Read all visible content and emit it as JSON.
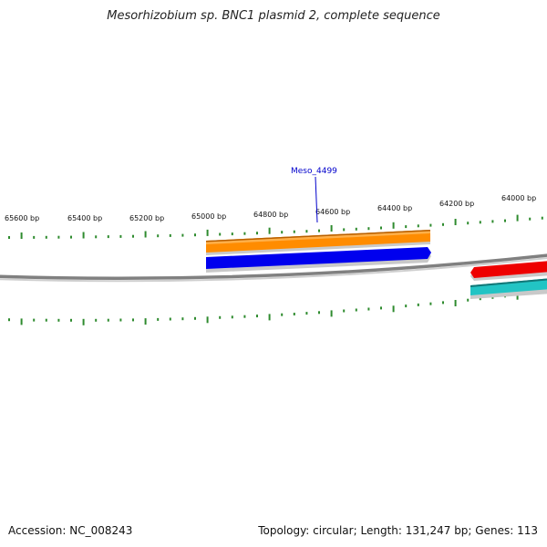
{
  "title": "Mesorhizobium sp. BNC1 plasmid 2, complete sequence",
  "footer": {
    "accession_label": "Accession:",
    "accession": "NC_008243",
    "topology_label": "Topology:",
    "topology": "circular",
    "length_label": "Length:",
    "length": "131,247 bp",
    "genes_label": "Genes:",
    "genes": "113"
  },
  "backbone_color": "#808080",
  "tick_color": "#2e8b2e",
  "ruler_labels": [
    {
      "id": "65600",
      "text": "65600 bp"
    },
    {
      "id": "65400",
      "text": "65400 bp"
    },
    {
      "id": "65200",
      "text": "65200 bp"
    },
    {
      "id": "65000",
      "text": "65000 bp"
    },
    {
      "id": "64800",
      "text": "64800 bp"
    },
    {
      "id": "64600",
      "text": "64600 bp"
    },
    {
      "id": "64400",
      "text": "64400 bp"
    },
    {
      "id": "64200",
      "text": "64200 bp"
    },
    {
      "id": "64000",
      "text": "64000 bp"
    }
  ],
  "features": [
    {
      "id": "orange",
      "color": "#ff8c00"
    },
    {
      "id": "blue",
      "color": "#0000ee",
      "label": "Meso_4499",
      "label_color": "#0000cc"
    },
    {
      "id": "red",
      "color": "#ee0000"
    },
    {
      "id": "teal",
      "color": "#22c4c4"
    }
  ]
}
